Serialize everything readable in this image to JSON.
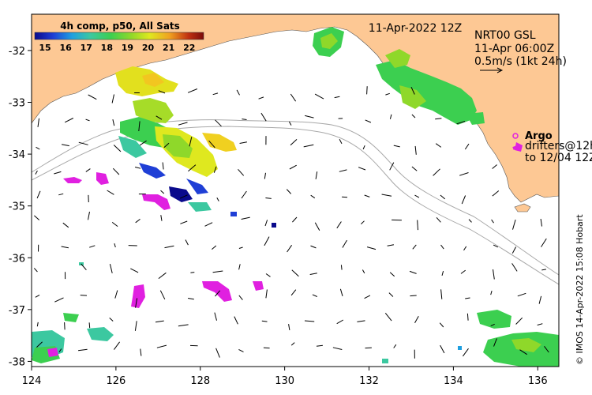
{
  "map": {
    "title_date": "11-Apr-2022 12Z",
    "colorbar": {
      "title": "4h comp, p50, All Sats",
      "ticks": [
        "15",
        "16",
        "17",
        "18",
        "19",
        "20",
        "21",
        "22"
      ],
      "range": [
        14.5,
        22.7
      ],
      "colors": [
        "#0a0a8c",
        "#1f3fd6",
        "#1f9fe0",
        "#3cc8a0",
        "#3ccf50",
        "#8fd82a",
        "#dfe81f",
        "#f0a020",
        "#c03010",
        "#7a0c0c"
      ]
    },
    "product": {
      "name": "NRT00 GSL",
      "time": "11-Apr 06:00Z",
      "scale": "0.5m/s (1kt 24h)"
    },
    "legend": {
      "argo_label": "Argo",
      "drifters_line1": "drifters@12h",
      "drifters_line2": "to 12/04 12Z"
    },
    "credit": "© IMOS 14-Apr-2022 15:08 Hobart",
    "x_ticks": [
      "124",
      "126",
      "128",
      "130",
      "132",
      "134",
      "136"
    ],
    "y_ticks": [
      "-32",
      "-33",
      "-34",
      "-35",
      "-36",
      "-37",
      "-38"
    ],
    "lon_range": [
      124,
      136.5
    ],
    "lat_range": [
      -38.1,
      -31.3
    ],
    "colors": {
      "land": "#fdc894",
      "ocean": "#ffffff",
      "argo": "#e020e0",
      "drifter": "#e020e0",
      "bathymetry": "#a8a8a8"
    }
  }
}
